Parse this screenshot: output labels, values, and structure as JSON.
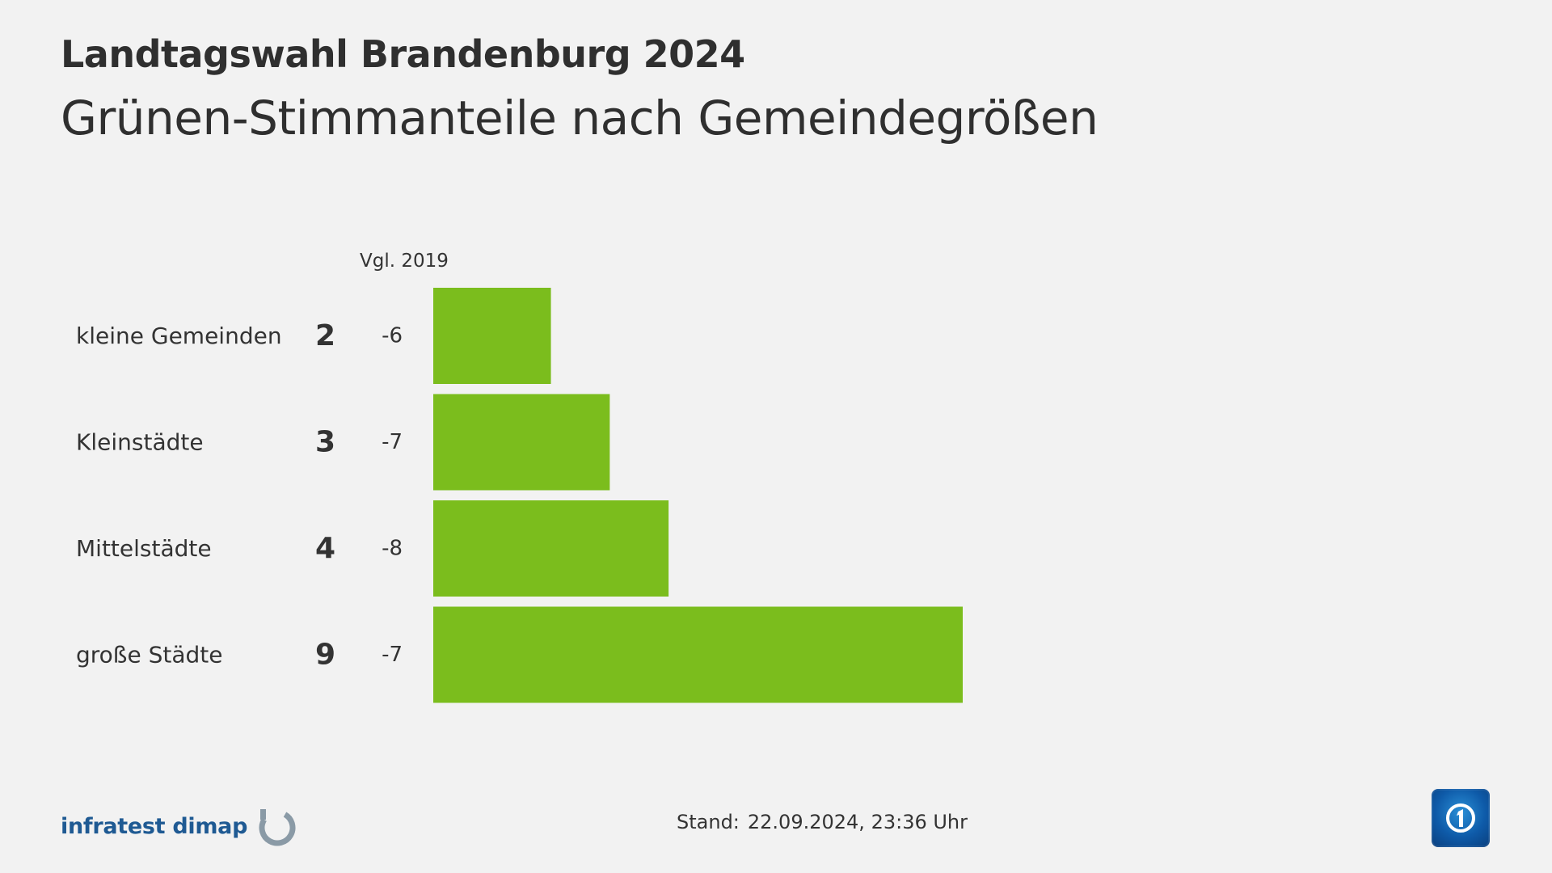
{
  "header": {
    "supertitle": "Landtagswahl Brandenburg 2024",
    "title": "Grünen-Stimmanteile nach Gemeindegrößen"
  },
  "chart_data": {
    "type": "bar",
    "orientation": "horizontal",
    "comparison_label": "Vgl. 2019",
    "categories": [
      "kleine Gemeinden",
      "Kleinstädte",
      "Mittelstädte",
      "große Städte"
    ],
    "values": [
      2,
      3,
      4,
      9
    ],
    "changes": [
      "-6",
      "-7",
      "-8",
      "-7"
    ],
    "bar_color": "#7bbd1d",
    "xlim": [
      0,
      9
    ]
  },
  "footer": {
    "brand": "infratest dimap",
    "stand_label": "Stand:",
    "stand_value": "22.09.2024, 23:36 Uhr"
  },
  "colors": {
    "background": "#f2f2f2",
    "text": "#333333",
    "brand_blue": "#1f5a93",
    "ard_blue": "#0e5aa8"
  },
  "icons": {
    "brand_logo": "infratest-dimap-logo-icon",
    "broadcaster_logo": "ard-logo-icon"
  }
}
